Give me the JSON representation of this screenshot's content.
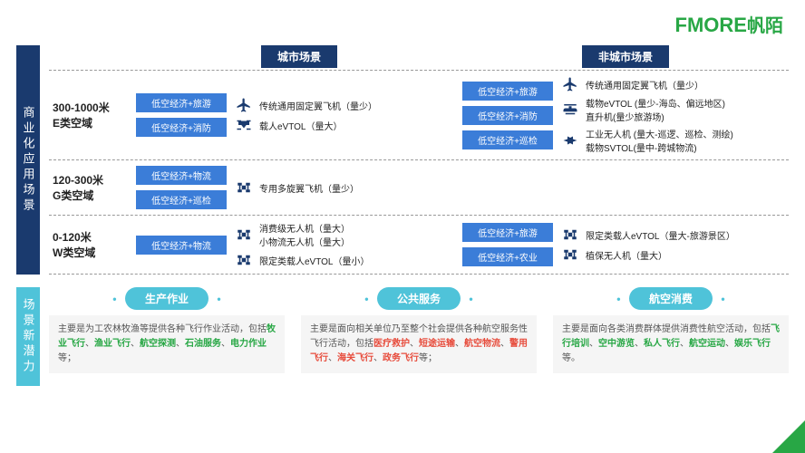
{
  "logo": {
    "brand_en": "FMORE",
    "brand_cn": "帆陌"
  },
  "section_top": "商业化应用场景",
  "section_bottom": "场景新潜力",
  "headers": {
    "urban": "城市场景",
    "nonurban": "非城市场景"
  },
  "rows": [
    {
      "alt1": "300-1000米",
      "alt2": "E类空域",
      "urban_tags": [
        "低空经济+旅游",
        "低空经济+消防"
      ],
      "urban_vehicles": [
        {
          "icon": "plane",
          "label": "传统通用固定翼飞机（量少）"
        },
        {
          "icon": "drone",
          "label": "载人eVTOL（量大）"
        }
      ],
      "nonurban_tags": [
        "低空经济+旅游",
        "低空经济+消防",
        "低空经济+巡检"
      ],
      "nonurban_vehicles": [
        {
          "icon": "plane",
          "label": "传统通用固定翼飞机（量少）"
        },
        {
          "icon": "heli",
          "label": "载物eVTOL (量少-海岛、偏远地区)\n直升机(量少旅游场)"
        },
        {
          "icon": "jet",
          "label": "工业无人机 (量大-巡逻、巡检、测绘)\n载物SVTOL(量中-跨城物流)"
        }
      ]
    },
    {
      "alt1": "120-300米",
      "alt2": "G类空域",
      "urban_tags": [
        "低空经济+物流",
        "低空经济+巡检"
      ],
      "urban_vehicles": [
        {
          "icon": "quad",
          "label": "专用多旋翼飞机（量少）"
        }
      ],
      "nonurban_tags": [],
      "nonurban_vehicles": []
    },
    {
      "alt1": "0-120米",
      "alt2": "W类空域",
      "urban_tags": [
        "低空经济+物流"
      ],
      "urban_vehicles": [
        {
          "icon": "quad",
          "label": "消费级无人机（量大）\n小物流无人机（量大）"
        },
        {
          "icon": "quad",
          "label": "限定类载人eVTOL（量小）"
        }
      ],
      "nonurban_tags": [
        "低空经济+旅游",
        "低空经济+农业"
      ],
      "nonurban_vehicles": [
        {
          "icon": "quad",
          "label": "限定类载人eVTOL（量大-旅游景区）"
        },
        {
          "icon": "quad",
          "label": "植保无人机（量大）"
        }
      ]
    }
  ],
  "cards": [
    {
      "title": "生产作业",
      "text": "主要是为工农林牧渔等提供各种飞行作业活动，包括",
      "highlights": [
        "牧业飞行",
        "渔业飞行",
        "航空探测",
        "石油服务",
        "电力作业"
      ],
      "hl_color": "g",
      "suffix": "等；"
    },
    {
      "title": "公共服务",
      "text": "主要是面向相关单位乃至整个社会提供各种航空服务性飞行活动，包括",
      "highlights": [
        "医疗救护",
        "短途运输",
        "航空物流",
        "警用飞行",
        "海关飞行",
        "政务飞行"
      ],
      "hl_color": "r",
      "suffix": "等；"
    },
    {
      "title": "航空消费",
      "text": "主要是面向各类消费群体提供消费性航空活动，包括",
      "highlights": [
        "飞行培训",
        "空中游览",
        "私人飞行",
        "航空运动",
        "娱乐飞行"
      ],
      "hl_color": "g",
      "suffix": "等。"
    }
  ]
}
